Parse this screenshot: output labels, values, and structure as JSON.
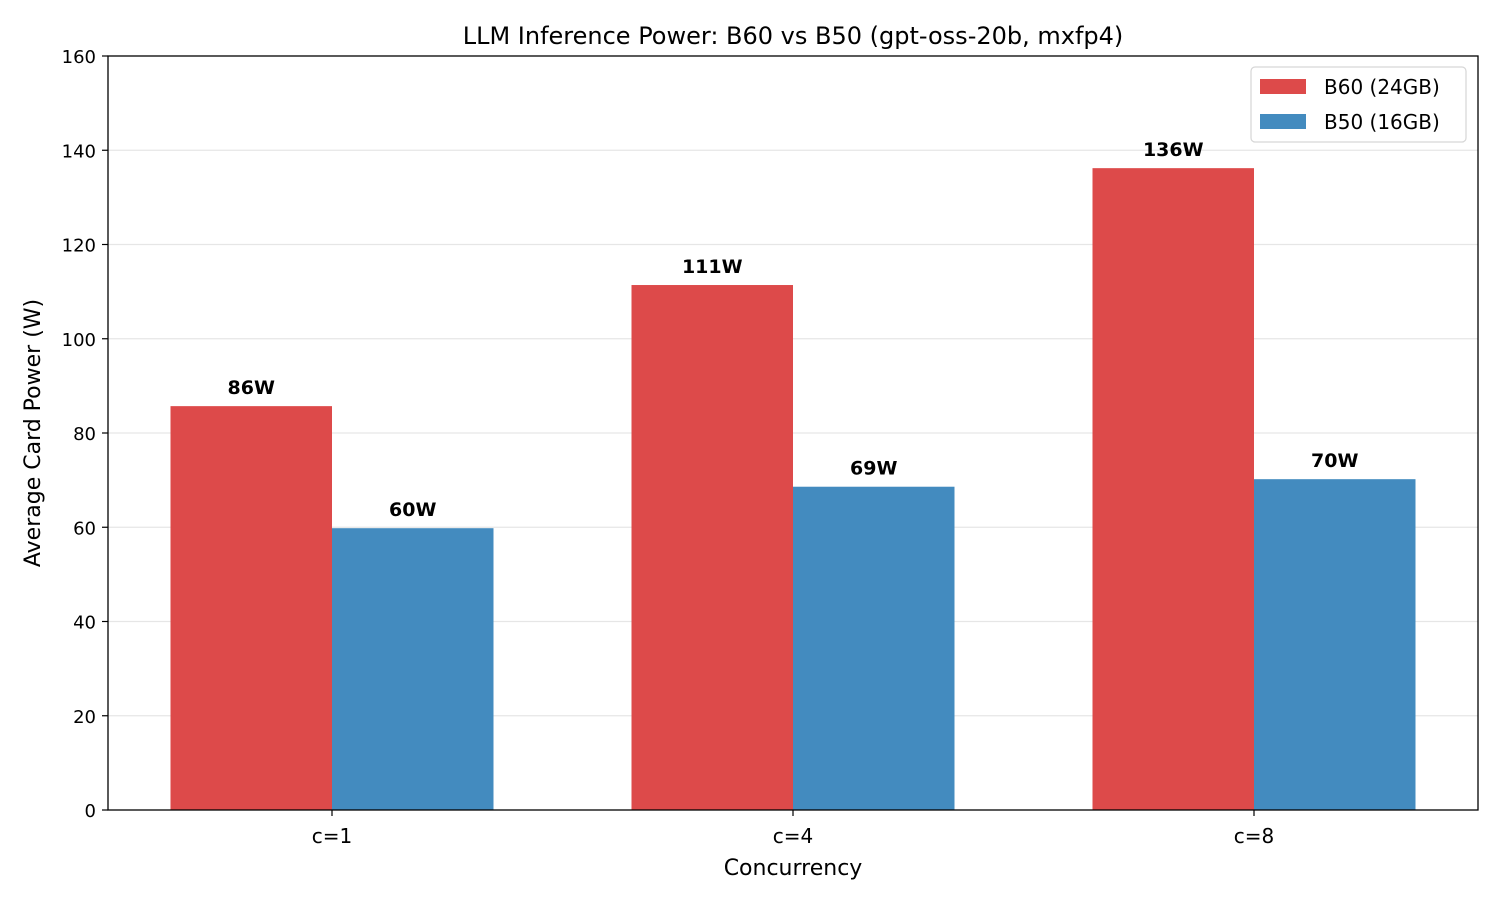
{
  "chart_data": {
    "type": "bar",
    "title": "LLM Inference Power: B60 vs B50 (gpt-oss-20b, mxfp4)",
    "xlabel": "Concurrency",
    "ylabel": "Average Card Power (W)",
    "categories": [
      "c=1",
      "c=4",
      "c=8"
    ],
    "ylim": [
      0,
      160
    ],
    "yticks": [
      0,
      20,
      40,
      60,
      80,
      100,
      120,
      140,
      160
    ],
    "grid": "y",
    "legend_position": "top-right",
    "series": [
      {
        "name": "B60 (24GB)",
        "color": "#dd4a4a",
        "values": [
          85.7,
          111.4,
          136.2
        ],
        "labels": [
          "86W",
          "111W",
          "136W"
        ]
      },
      {
        "name": "B50 (16GB)",
        "color": "#438bbf",
        "values": [
          59.8,
          68.6,
          70.2
        ],
        "labels": [
          "60W",
          "69W",
          "70W"
        ]
      }
    ]
  }
}
